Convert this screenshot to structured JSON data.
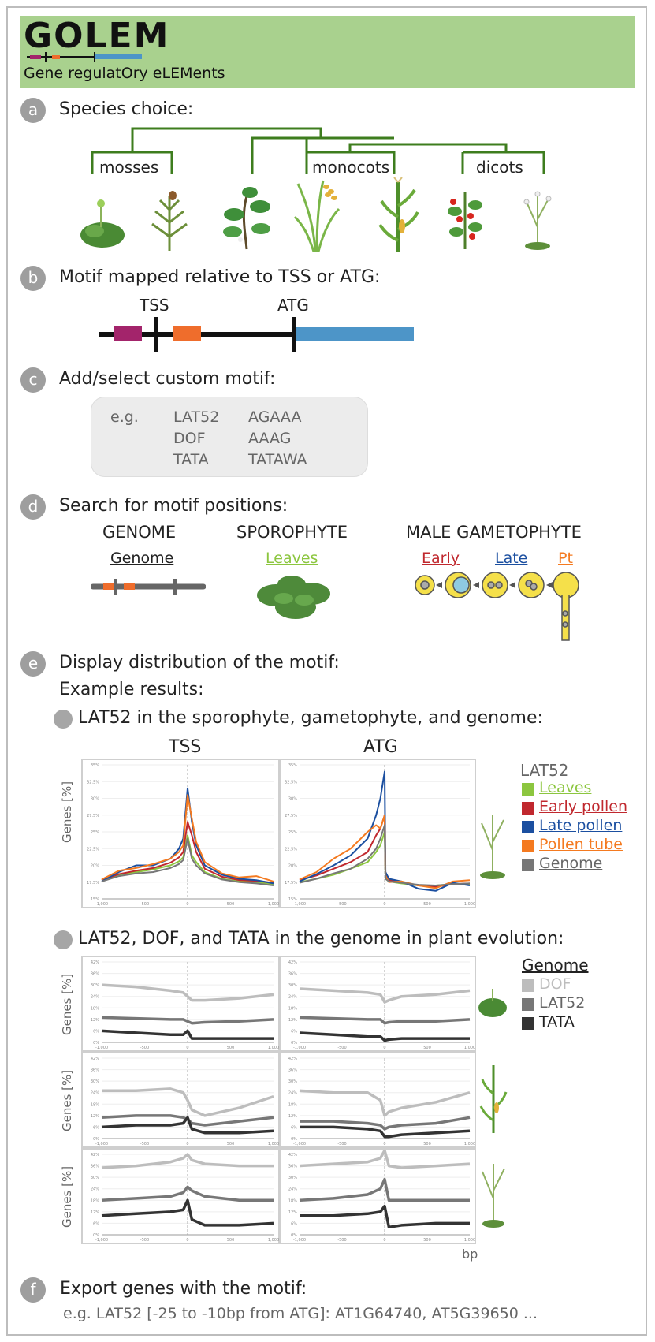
{
  "header": {
    "title": "GOLEM",
    "subtitle": "Gene regulatOry eLEMents"
  },
  "colors": {
    "header_bg": "#a9d18e",
    "tree": "#3e7d1e",
    "magenta": "#a3246b",
    "orange": "#ef6d2c",
    "blue": "#4d95c8",
    "leaves": "#8cc63f",
    "early": "#c0282e",
    "late": "#1b4fa0",
    "tube": "#f47a20",
    "genome": "#777777",
    "dof": "#bdbdbd",
    "lat52": "#777777",
    "tata": "#333333"
  },
  "sections": {
    "a": {
      "letter": "a",
      "title": "Species choice:",
      "groups": [
        "mosses",
        "monocots",
        "dicots"
      ]
    },
    "b": {
      "letter": "b",
      "title": "Motif mapped relative to TSS or ATG:",
      "tss": "TSS",
      "atg": "ATG"
    },
    "c": {
      "letter": "c",
      "title": "Add/select custom motif:",
      "eg": "e.g.",
      "motif_names": [
        "LAT52",
        "DOF",
        "TATA"
      ],
      "motif_seqs": [
        "AGAAA",
        "AAAG",
        "TATAWA"
      ]
    },
    "d": {
      "letter": "d",
      "title": "Search for motif positions:",
      "genome_title": "GENOME",
      "genome_label": "Genome",
      "sporophyte_title": "SPOROPHYTE",
      "sporophyte_label": "Leaves",
      "gametophyte_title": "MALE GAMETOPHYTE",
      "early": "Early",
      "late": "Late",
      "pt": "Pt"
    },
    "e": {
      "letter": "e",
      "title": "Display distribution of the motif:",
      "subtitle": "Example results:",
      "bullet1": "LAT52 in the sporophyte, gametophyte, and genome:",
      "bullet2": "LAT52, DOF, and TATA in the genome in plant evolution:",
      "col_tss": "TSS",
      "col_atg": "ATG",
      "ylabel": "Genes [%]",
      "xunit": "bp",
      "legend1_title": "LAT52",
      "legend1": [
        "Leaves",
        "Early pollen",
        "Late pollen",
        "Pollen tube",
        "Genome"
      ],
      "legend2_title": "Genome",
      "legend2": [
        "DOF",
        "LAT52",
        "TATA"
      ]
    },
    "f": {
      "letter": "f",
      "title": "Export genes with the motif:",
      "example": "e.g. LAT52 [-25 to -10bp from ATG]: AT1G64740, AT5G39650 ..."
    }
  },
  "chart_data": [
    {
      "type": "line",
      "title": "TSS",
      "ylabel": "Genes [%]",
      "yticks": [
        "15%",
        "17.5%",
        "20%",
        "22.5%",
        "25%",
        "27.5%",
        "30%",
        "32.5%",
        "35%"
      ],
      "xticks": [
        "-1,000",
        "-500",
        "0",
        "500",
        "1,000"
      ],
      "x": [
        -1000,
        -800,
        -600,
        -400,
        -200,
        -100,
        -50,
        0,
        50,
        100,
        200,
        400,
        600,
        800,
        1000
      ],
      "series": [
        {
          "name": "Leaves",
          "values": [
            17.8,
            18.6,
            19.0,
            19.4,
            20.0,
            20.6,
            21.2,
            24.5,
            21.5,
            20.5,
            19.0,
            18.0,
            17.6,
            17.5,
            17.2
          ]
        },
        {
          "name": "Early pollen",
          "values": [
            17.8,
            18.7,
            19.2,
            19.6,
            20.4,
            21.2,
            22.0,
            26.5,
            24.5,
            22.0,
            19.5,
            18.3,
            17.8,
            17.7,
            17.4
          ]
        },
        {
          "name": "Late pollen",
          "values": [
            17.6,
            19.0,
            20.0,
            20.0,
            21.0,
            22.5,
            24.0,
            31.5,
            26.5,
            23.0,
            20.0,
            18.6,
            18.0,
            17.8,
            17.3
          ]
        },
        {
          "name": "Pollen tube",
          "values": [
            17.9,
            19.2,
            19.6,
            20.2,
            21.0,
            22.0,
            23.0,
            30.5,
            27.0,
            23.5,
            20.5,
            18.8,
            18.2,
            18.4,
            17.6
          ]
        },
        {
          "name": "Genome",
          "values": [
            17.6,
            18.4,
            18.8,
            19.0,
            19.6,
            20.2,
            20.8,
            24.0,
            21.0,
            20.0,
            18.8,
            17.9,
            17.5,
            17.3,
            17.0
          ]
        }
      ]
    },
    {
      "type": "line",
      "title": "ATG",
      "ylabel": "Genes [%]",
      "yticks": [
        "15%",
        "17.5%",
        "20%",
        "22.5%",
        "25%",
        "27.5%",
        "30%",
        "32.5%",
        "35%"
      ],
      "xticks": [
        "-1,000",
        "-500",
        "0",
        "500",
        "1,000"
      ],
      "x": [
        -1000,
        -800,
        -600,
        -400,
        -200,
        -100,
        -50,
        0,
        10,
        50,
        200,
        400,
        600,
        800,
        1000
      ],
      "series": [
        {
          "name": "Leaves",
          "values": [
            17.5,
            18.0,
            18.6,
            19.5,
            20.5,
            22.0,
            23.0,
            25.0,
            18.0,
            17.6,
            17.3,
            17.0,
            17.0,
            17.2,
            17.2
          ]
        },
        {
          "name": "Early pollen",
          "values": [
            17.8,
            18.5,
            19.5,
            20.5,
            22.0,
            24.5,
            25.5,
            27.5,
            18.5,
            17.8,
            17.5,
            17.0,
            16.8,
            17.2,
            17.3
          ]
        },
        {
          "name": "Late pollen",
          "values": [
            17.6,
            18.7,
            20.0,
            21.5,
            24.0,
            27.5,
            30.0,
            34.0,
            19.0,
            18.0,
            17.6,
            16.5,
            16.2,
            17.4,
            17.0
          ]
        },
        {
          "name": "Pollen tube",
          "values": [
            17.9,
            19.0,
            21.0,
            22.5,
            25.0,
            26.0,
            25.5,
            27.5,
            18.5,
            17.5,
            17.6,
            17.0,
            16.6,
            17.6,
            17.8
          ]
        },
        {
          "name": "Genome",
          "values": [
            17.4,
            18.0,
            18.8,
            19.5,
            21.0,
            22.5,
            24.0,
            26.0,
            18.0,
            17.6,
            17.4,
            17.1,
            17.0,
            17.2,
            17.3
          ]
        }
      ]
    },
    {
      "type": "line",
      "title": "TSS",
      "ylabel": "Genes [%]",
      "yticks": [
        "0%",
        "6%",
        "12%",
        "18%",
        "24%",
        "30%",
        "36%",
        "42%"
      ],
      "xticks": [
        "-1,000",
        "-500",
        "0",
        "500",
        "1,000"
      ],
      "x": [
        -1000,
        -600,
        -200,
        -50,
        0,
        50,
        200,
        600,
        1000
      ],
      "series": [
        {
          "name": "DOF",
          "values": [
            30,
            29,
            27,
            26,
            24,
            22,
            22,
            23,
            25
          ]
        },
        {
          "name": "LAT52",
          "values": [
            13,
            12.5,
            12,
            12,
            11,
            10,
            10.5,
            11,
            12
          ]
        },
        {
          "name": "TATA",
          "values": [
            6,
            5,
            4,
            4,
            6,
            2,
            2,
            2,
            2
          ]
        }
      ]
    },
    {
      "type": "line",
      "title": "ATG",
      "ylabel": "Genes [%]",
      "yticks": [
        "0%",
        "6%",
        "12%",
        "18%",
        "24%",
        "30%",
        "36%",
        "42%"
      ],
      "xticks": [
        "-1,000",
        "-500",
        "0",
        "500",
        "1,000"
      ],
      "x": [
        -1000,
        -600,
        -200,
        -50,
        0,
        50,
        200,
        600,
        1000
      ],
      "series": [
        {
          "name": "DOF",
          "values": [
            28,
            27,
            26,
            25,
            21,
            22,
            24,
            25,
            27
          ]
        },
        {
          "name": "LAT52",
          "values": [
            13,
            12.5,
            12,
            12,
            10,
            10.5,
            11,
            11,
            12
          ]
        },
        {
          "name": "TATA",
          "values": [
            5,
            4,
            3,
            3,
            1,
            1.5,
            2,
            2,
            2
          ]
        }
      ]
    },
    {
      "type": "line",
      "title": "TSS",
      "ylabel": "Genes [%]",
      "yticks": [
        "0%",
        "6%",
        "12%",
        "18%",
        "24%",
        "30%",
        "36%",
        "42%"
      ],
      "xticks": [
        "-1,000",
        "-500",
        "0",
        "500",
        "1,000"
      ],
      "x": [
        -1000,
        -600,
        -200,
        -50,
        0,
        50,
        200,
        600,
        1000
      ],
      "series": [
        {
          "name": "DOF",
          "values": [
            25,
            25,
            26,
            24,
            20,
            15,
            12,
            16,
            22
          ]
        },
        {
          "name": "LAT52",
          "values": [
            11,
            12,
            12,
            11,
            10,
            8,
            7,
            9,
            11
          ]
        },
        {
          "name": "TATA",
          "values": [
            6,
            7,
            7,
            8,
            11,
            5,
            3,
            3,
            4
          ]
        }
      ]
    },
    {
      "type": "line",
      "title": "ATG",
      "ylabel": "Genes [%]",
      "yticks": [
        "0%",
        "6%",
        "12%",
        "18%",
        "24%",
        "30%",
        "36%",
        "42%"
      ],
      "xticks": [
        "-1,000",
        "-500",
        "0",
        "500",
        "1,000"
      ],
      "x": [
        -1000,
        -600,
        -200,
        -50,
        0,
        50,
        200,
        600,
        1000
      ],
      "series": [
        {
          "name": "DOF",
          "values": [
            25,
            24,
            24,
            20,
            12,
            14,
            16,
            19,
            24
          ]
        },
        {
          "name": "LAT52",
          "values": [
            9,
            9,
            8,
            7,
            5,
            6,
            7,
            8,
            11
          ]
        },
        {
          "name": "TATA",
          "values": [
            6,
            6,
            5,
            4,
            1,
            1,
            2,
            3,
            4
          ]
        }
      ]
    },
    {
      "type": "line",
      "title": "TSS",
      "ylabel": "Genes [%]",
      "yticks": [
        "0%",
        "6%",
        "12%",
        "18%",
        "24%",
        "30%",
        "36%",
        "42%"
      ],
      "xticks": [
        "-1,000",
        "-500",
        "0",
        "500",
        "1,000"
      ],
      "x": [
        -1000,
        -600,
        -200,
        -50,
        0,
        50,
        200,
        600,
        1000
      ],
      "series": [
        {
          "name": "DOF",
          "values": [
            35,
            36,
            38,
            40,
            42,
            39,
            37,
            36,
            36
          ]
        },
        {
          "name": "LAT52",
          "values": [
            18,
            19,
            20,
            22,
            25,
            23,
            20,
            18,
            18
          ]
        },
        {
          "name": "TATA",
          "values": [
            10,
            11,
            12,
            13,
            18,
            8,
            5,
            5,
            6
          ]
        }
      ]
    },
    {
      "type": "line",
      "title": "ATG",
      "ylabel": "Genes [%]",
      "yticks": [
        "0%",
        "6%",
        "12%",
        "18%",
        "24%",
        "30%",
        "36%",
        "42%"
      ],
      "xticks": [
        "-1,000",
        "-500",
        "0",
        "500",
        "1,000"
      ],
      "x": [
        -1000,
        -600,
        -200,
        -50,
        0,
        50,
        200,
        600,
        1000
      ],
      "series": [
        {
          "name": "DOF",
          "values": [
            36,
            37,
            38,
            40,
            44,
            36,
            35,
            36,
            37
          ]
        },
        {
          "name": "LAT52",
          "values": [
            18,
            19,
            21,
            24,
            29,
            18,
            18,
            18,
            18
          ]
        },
        {
          "name": "TATA",
          "values": [
            10,
            10,
            11,
            12,
            15,
            4,
            5,
            6,
            6
          ]
        }
      ]
    }
  ]
}
